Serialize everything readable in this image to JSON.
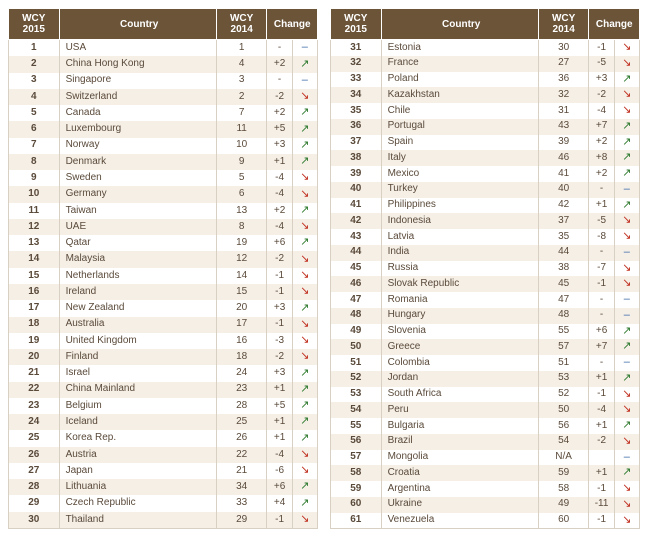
{
  "headers": {
    "wcy2015": "WCY 2015",
    "country": "Country",
    "wcy2014": "WCY 2014",
    "change": "Change"
  },
  "arrows": {
    "up": "↗",
    "down": "↘",
    "flat": "–"
  },
  "left": [
    {
      "r": 1,
      "c": "USA",
      "p": "1",
      "d": "-",
      "a": "flat"
    },
    {
      "r": 2,
      "c": "China Hong Kong",
      "p": "4",
      "d": "+2",
      "a": "up"
    },
    {
      "r": 3,
      "c": "Singapore",
      "p": "3",
      "d": "-",
      "a": "flat"
    },
    {
      "r": 4,
      "c": "Switzerland",
      "p": "2",
      "d": "-2",
      "a": "down"
    },
    {
      "r": 5,
      "c": "Canada",
      "p": "7",
      "d": "+2",
      "a": "up"
    },
    {
      "r": 6,
      "c": "Luxembourg",
      "p": "11",
      "d": "+5",
      "a": "up"
    },
    {
      "r": 7,
      "c": "Norway",
      "p": "10",
      "d": "+3",
      "a": "up"
    },
    {
      "r": 8,
      "c": "Denmark",
      "p": "9",
      "d": "+1",
      "a": "up"
    },
    {
      "r": 9,
      "c": "Sweden",
      "p": "5",
      "d": "-4",
      "a": "down"
    },
    {
      "r": 10,
      "c": "Germany",
      "p": "6",
      "d": "-4",
      "a": "down"
    },
    {
      "r": 11,
      "c": "Taiwan",
      "p": "13",
      "d": "+2",
      "a": "up"
    },
    {
      "r": 12,
      "c": "UAE",
      "p": "8",
      "d": "-4",
      "a": "down"
    },
    {
      "r": 13,
      "c": "Qatar",
      "p": "19",
      "d": "+6",
      "a": "up"
    },
    {
      "r": 14,
      "c": "Malaysia",
      "p": "12",
      "d": "-2",
      "a": "down"
    },
    {
      "r": 15,
      "c": "Netherlands",
      "p": "14",
      "d": "-1",
      "a": "down"
    },
    {
      "r": 16,
      "c": "Ireland",
      "p": "15",
      "d": "-1",
      "a": "down"
    },
    {
      "r": 17,
      "c": "New Zealand",
      "p": "20",
      "d": "+3",
      "a": "up"
    },
    {
      "r": 18,
      "c": "Australia",
      "p": "17",
      "d": "-1",
      "a": "down"
    },
    {
      "r": 19,
      "c": "United Kingdom",
      "p": "16",
      "d": "-3",
      "a": "down"
    },
    {
      "r": 20,
      "c": "Finland",
      "p": "18",
      "d": "-2",
      "a": "down"
    },
    {
      "r": 21,
      "c": "Israel",
      "p": "24",
      "d": "+3",
      "a": "up"
    },
    {
      "r": 22,
      "c": "China Mainland",
      "p": "23",
      "d": "+1",
      "a": "up"
    },
    {
      "r": 23,
      "c": "Belgium",
      "p": "28",
      "d": "+5",
      "a": "up"
    },
    {
      "r": 24,
      "c": "Iceland",
      "p": "25",
      "d": "+1",
      "a": "up"
    },
    {
      "r": 25,
      "c": "Korea Rep.",
      "p": "26",
      "d": "+1",
      "a": "up"
    },
    {
      "r": 26,
      "c": "Austria",
      "p": "22",
      "d": "-4",
      "a": "down"
    },
    {
      "r": 27,
      "c": "Japan",
      "p": "21",
      "d": "-6",
      "a": "down"
    },
    {
      "r": 28,
      "c": "Lithuania",
      "p": "34",
      "d": "+6",
      "a": "up"
    },
    {
      "r": 29,
      "c": "Czech Republic",
      "p": "33",
      "d": "+4",
      "a": "up"
    },
    {
      "r": 30,
      "c": "Thailand",
      "p": "29",
      "d": "-1",
      "a": "down"
    }
  ],
  "right": [
    {
      "r": 31,
      "c": "Estonia",
      "p": "30",
      "d": "-1",
      "a": "down"
    },
    {
      "r": 32,
      "c": "France",
      "p": "27",
      "d": "-5",
      "a": "down"
    },
    {
      "r": 33,
      "c": "Poland",
      "p": "36",
      "d": "+3",
      "a": "up"
    },
    {
      "r": 34,
      "c": "Kazakhstan",
      "p": "32",
      "d": "-2",
      "a": "down"
    },
    {
      "r": 35,
      "c": "Chile",
      "p": "31",
      "d": "-4",
      "a": "down"
    },
    {
      "r": 36,
      "c": "Portugal",
      "p": "43",
      "d": "+7",
      "a": "up"
    },
    {
      "r": 37,
      "c": "Spain",
      "p": "39",
      "d": "+2",
      "a": "up"
    },
    {
      "r": 38,
      "c": "Italy",
      "p": "46",
      "d": "+8",
      "a": "up"
    },
    {
      "r": 39,
      "c": "Mexico",
      "p": "41",
      "d": "+2",
      "a": "up"
    },
    {
      "r": 40,
      "c": "Turkey",
      "p": "40",
      "d": "-",
      "a": "flat"
    },
    {
      "r": 41,
      "c": "Philippines",
      "p": "42",
      "d": "+1",
      "a": "up"
    },
    {
      "r": 42,
      "c": "Indonesia",
      "p": "37",
      "d": "-5",
      "a": "down"
    },
    {
      "r": 43,
      "c": "Latvia",
      "p": "35",
      "d": "-8",
      "a": "down"
    },
    {
      "r": 44,
      "c": "India",
      "p": "44",
      "d": "-",
      "a": "flat"
    },
    {
      "r": 45,
      "c": "Russia",
      "p": "38",
      "d": "-7",
      "a": "down"
    },
    {
      "r": 46,
      "c": "Slovak Republic",
      "p": "45",
      "d": "-1",
      "a": "down"
    },
    {
      "r": 47,
      "c": "Romania",
      "p": "47",
      "d": "-",
      "a": "flat"
    },
    {
      "r": 48,
      "c": "Hungary",
      "p": "48",
      "d": "-",
      "a": "flat"
    },
    {
      "r": 49,
      "c": "Slovenia",
      "p": "55",
      "d": "+6",
      "a": "up"
    },
    {
      "r": 50,
      "c": "Greece",
      "p": "57",
      "d": "+7",
      "a": "up"
    },
    {
      "r": 51,
      "c": "Colombia",
      "p": "51",
      "d": "-",
      "a": "flat"
    },
    {
      "r": 52,
      "c": "Jordan",
      "p": "53",
      "d": "+1",
      "a": "up"
    },
    {
      "r": 53,
      "c": "South Africa",
      "p": "52",
      "d": "-1",
      "a": "down"
    },
    {
      "r": 54,
      "c": "Peru",
      "p": "50",
      "d": "-4",
      "a": "down"
    },
    {
      "r": 55,
      "c": "Bulgaria",
      "p": "56",
      "d": "+1",
      "a": "up"
    },
    {
      "r": 56,
      "c": "Brazil",
      "p": "54",
      "d": "-2",
      "a": "down"
    },
    {
      "r": 57,
      "c": "Mongolia",
      "p": "N/A",
      "d": "",
      "a": "flat"
    },
    {
      "r": 58,
      "c": "Croatia",
      "p": "59",
      "d": "+1",
      "a": "up"
    },
    {
      "r": 59,
      "c": "Argentina",
      "p": "58",
      "d": "-1",
      "a": "down"
    },
    {
      "r": 60,
      "c": "Ukraine",
      "p": "49",
      "d": "-11",
      "a": "down"
    },
    {
      "r": 61,
      "c": "Venezuela",
      "p": "60",
      "d": "-1",
      "a": "down"
    }
  ]
}
